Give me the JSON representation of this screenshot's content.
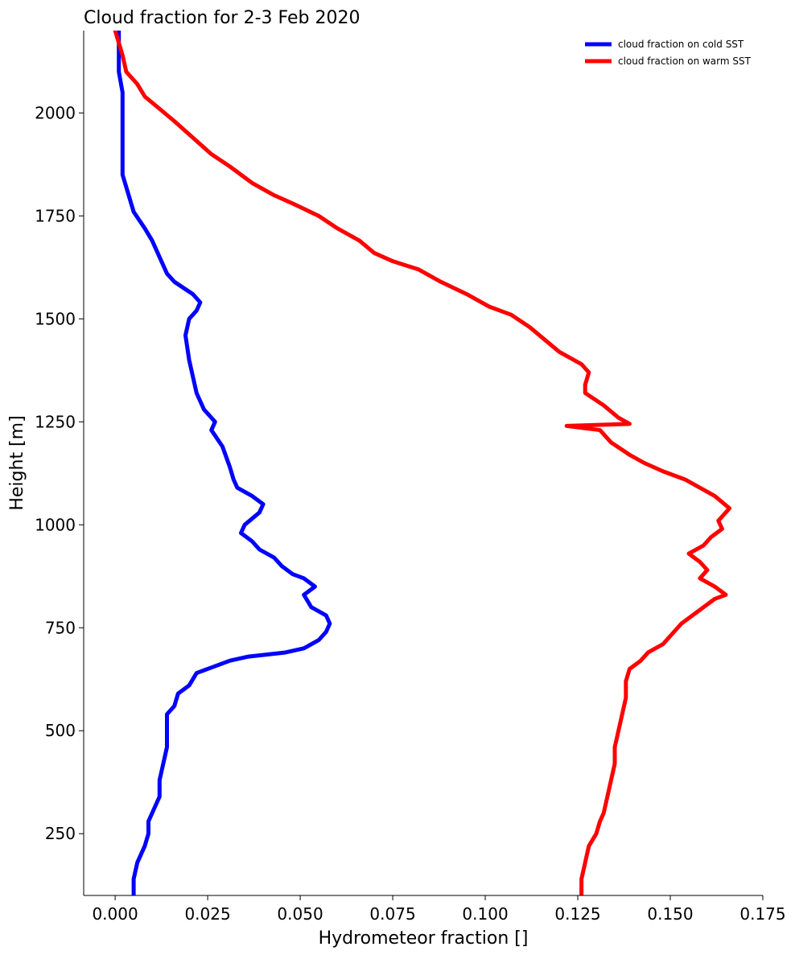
{
  "chart_data": {
    "type": "line",
    "title": "Cloud fraction for 2-3 Feb 2020",
    "xlabel": "Hydrometeor fraction []",
    "ylabel": "Height [m]",
    "xlim": [
      -0.0085,
      0.175
    ],
    "ylim": [
      100,
      2200
    ],
    "xticks": [
      0.0,
      0.025,
      0.05,
      0.075,
      0.1,
      0.125,
      0.15,
      0.175
    ],
    "xtick_labels": [
      "0.000",
      "0.025",
      "0.050",
      "0.075",
      "0.100",
      "0.125",
      "0.150",
      "0.175"
    ],
    "yticks": [
      250,
      500,
      750,
      1000,
      1250,
      1500,
      1750,
      2000
    ],
    "ytick_labels": [
      "250",
      "500",
      "750",
      "1000",
      "1250",
      "1500",
      "1750",
      "2000"
    ],
    "grid": false,
    "legend_position": "top-right",
    "series": [
      {
        "name": "cloud fraction on cold SST",
        "color": "#0000ff",
        "points": [
          [
            0.005,
            100
          ],
          [
            0.005,
            140
          ],
          [
            0.006,
            180
          ],
          [
            0.008,
            220
          ],
          [
            0.009,
            250
          ],
          [
            0.009,
            280
          ],
          [
            0.01,
            300
          ],
          [
            0.012,
            340
          ],
          [
            0.012,
            380
          ],
          [
            0.013,
            420
          ],
          [
            0.014,
            460
          ],
          [
            0.014,
            500
          ],
          [
            0.014,
            540
          ],
          [
            0.016,
            560
          ],
          [
            0.017,
            590
          ],
          [
            0.02,
            610
          ],
          [
            0.022,
            640
          ],
          [
            0.025,
            650
          ],
          [
            0.028,
            660
          ],
          [
            0.031,
            670
          ],
          [
            0.036,
            680
          ],
          [
            0.046,
            690
          ],
          [
            0.051,
            700
          ],
          [
            0.055,
            720
          ],
          [
            0.057,
            740
          ],
          [
            0.058,
            760
          ],
          [
            0.057,
            780
          ],
          [
            0.053,
            800
          ],
          [
            0.051,
            830
          ],
          [
            0.054,
            850
          ],
          [
            0.051,
            870
          ],
          [
            0.048,
            880
          ],
          [
            0.045,
            900
          ],
          [
            0.043,
            920
          ],
          [
            0.039,
            940
          ],
          [
            0.037,
            960
          ],
          [
            0.034,
            980
          ],
          [
            0.035,
            1000
          ],
          [
            0.039,
            1030
          ],
          [
            0.04,
            1050
          ],
          [
            0.037,
            1070
          ],
          [
            0.033,
            1090
          ],
          [
            0.032,
            1110
          ],
          [
            0.031,
            1140
          ],
          [
            0.029,
            1190
          ],
          [
            0.026,
            1230
          ],
          [
            0.027,
            1250
          ],
          [
            0.024,
            1280
          ],
          [
            0.022,
            1320
          ],
          [
            0.021,
            1360
          ],
          [
            0.02,
            1400
          ],
          [
            0.019,
            1460
          ],
          [
            0.02,
            1500
          ],
          [
            0.022,
            1520
          ],
          [
            0.023,
            1540
          ],
          [
            0.021,
            1560
          ],
          [
            0.016,
            1590
          ],
          [
            0.014,
            1610
          ],
          [
            0.012,
            1650
          ],
          [
            0.01,
            1690
          ],
          [
            0.008,
            1720
          ],
          [
            0.005,
            1760
          ],
          [
            0.004,
            1790
          ],
          [
            0.003,
            1820
          ],
          [
            0.002,
            1850
          ],
          [
            0.002,
            1900
          ],
          [
            0.002,
            2000
          ],
          [
            0.002,
            2050
          ],
          [
            0.001,
            2100
          ],
          [
            0.001,
            2150
          ],
          [
            0.001,
            2200
          ]
        ]
      },
      {
        "name": "cloud fraction on warm SST",
        "color": "#ff0000",
        "points": [
          [
            0.126,
            100
          ],
          [
            0.126,
            140
          ],
          [
            0.127,
            180
          ],
          [
            0.128,
            220
          ],
          [
            0.13,
            250
          ],
          [
            0.131,
            280
          ],
          [
            0.132,
            300
          ],
          [
            0.133,
            340
          ],
          [
            0.134,
            380
          ],
          [
            0.135,
            420
          ],
          [
            0.135,
            460
          ],
          [
            0.136,
            500
          ],
          [
            0.137,
            540
          ],
          [
            0.138,
            580
          ],
          [
            0.138,
            620
          ],
          [
            0.139,
            650
          ],
          [
            0.142,
            670
          ],
          [
            0.144,
            690
          ],
          [
            0.148,
            710
          ],
          [
            0.15,
            730
          ],
          [
            0.153,
            760
          ],
          [
            0.156,
            780
          ],
          [
            0.159,
            800
          ],
          [
            0.162,
            820
          ],
          [
            0.165,
            830
          ],
          [
            0.162,
            850
          ],
          [
            0.158,
            870
          ],
          [
            0.16,
            890
          ],
          [
            0.158,
            910
          ],
          [
            0.155,
            930
          ],
          [
            0.159,
            950
          ],
          [
            0.161,
            970
          ],
          [
            0.164,
            990
          ],
          [
            0.163,
            1010
          ],
          [
            0.166,
            1040
          ],
          [
            0.162,
            1070
          ],
          [
            0.158,
            1090
          ],
          [
            0.154,
            1110
          ],
          [
            0.148,
            1130
          ],
          [
            0.143,
            1150
          ],
          [
            0.139,
            1170
          ],
          [
            0.134,
            1200
          ],
          [
            0.131,
            1230
          ],
          [
            0.122,
            1240
          ],
          [
            0.139,
            1245
          ],
          [
            0.136,
            1260
          ],
          [
            0.132,
            1290
          ],
          [
            0.127,
            1320
          ],
          [
            0.127,
            1340
          ],
          [
            0.128,
            1370
          ],
          [
            0.126,
            1390
          ],
          [
            0.12,
            1420
          ],
          [
            0.116,
            1450
          ],
          [
            0.112,
            1480
          ],
          [
            0.107,
            1510
          ],
          [
            0.101,
            1530
          ],
          [
            0.095,
            1560
          ],
          [
            0.088,
            1590
          ],
          [
            0.082,
            1620
          ],
          [
            0.075,
            1640
          ],
          [
            0.07,
            1660
          ],
          [
            0.066,
            1690
          ],
          [
            0.06,
            1720
          ],
          [
            0.055,
            1750
          ],
          [
            0.048,
            1780
          ],
          [
            0.043,
            1800
          ],
          [
            0.037,
            1830
          ],
          [
            0.031,
            1870
          ],
          [
            0.026,
            1900
          ],
          [
            0.021,
            1940
          ],
          [
            0.016,
            1980
          ],
          [
            0.012,
            2010
          ],
          [
            0.008,
            2040
          ],
          [
            0.006,
            2070
          ],
          [
            0.003,
            2100
          ],
          [
            0.002,
            2140
          ],
          [
            0.001,
            2170
          ],
          [
            0.0,
            2200
          ]
        ]
      }
    ]
  }
}
